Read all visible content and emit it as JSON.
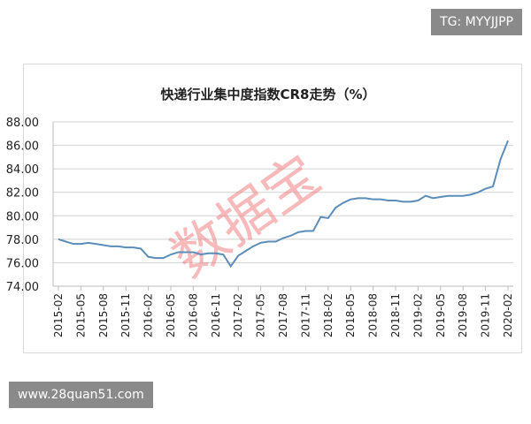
{
  "watermark_top": "TG: MYYJJPP",
  "watermark_bottom": "www.28quan51.com",
  "stamp": "数据宝",
  "chart_data": {
    "type": "line",
    "title": "快递行业集中度指数CR8走势（%）",
    "ylim": [
      74,
      88
    ],
    "yticks": [
      "74.00",
      "76.00",
      "78.00",
      "80.00",
      "82.00",
      "84.00",
      "86.00",
      "88.00"
    ],
    "grid": true,
    "line_color": "#5b8db8",
    "xtick_labels": [
      "2015-02",
      "2015-05",
      "2015-08",
      "2015-11",
      "2016-02",
      "2016-05",
      "2016-08",
      "2016-11",
      "2017-02",
      "2017-05",
      "2017-08",
      "2017-11",
      "2018-02",
      "2018-05",
      "2018-08",
      "2018-11",
      "2019-02",
      "2019-05",
      "2019-08",
      "2019-11",
      "2020-02"
    ],
    "start": "2015-02",
    "values": [
      78.0,
      77.8,
      77.6,
      77.6,
      77.7,
      77.6,
      77.5,
      77.4,
      77.4,
      77.3,
      77.3,
      77.2,
      76.5,
      76.4,
      76.4,
      76.7,
      76.9,
      76.9,
      76.9,
      76.7,
      76.8,
      76.8,
      76.7,
      75.7,
      76.6,
      77.0,
      77.4,
      77.7,
      77.8,
      77.8,
      78.1,
      78.3,
      78.6,
      78.7,
      78.7,
      79.9,
      79.8,
      80.7,
      81.1,
      81.4,
      81.5,
      81.5,
      81.4,
      81.4,
      81.3,
      81.3,
      81.2,
      81.2,
      81.3,
      81.7,
      81.5,
      81.6,
      81.7,
      81.7,
      81.7,
      81.8,
      82.0,
      82.3,
      82.5,
      84.8,
      86.4
    ]
  }
}
